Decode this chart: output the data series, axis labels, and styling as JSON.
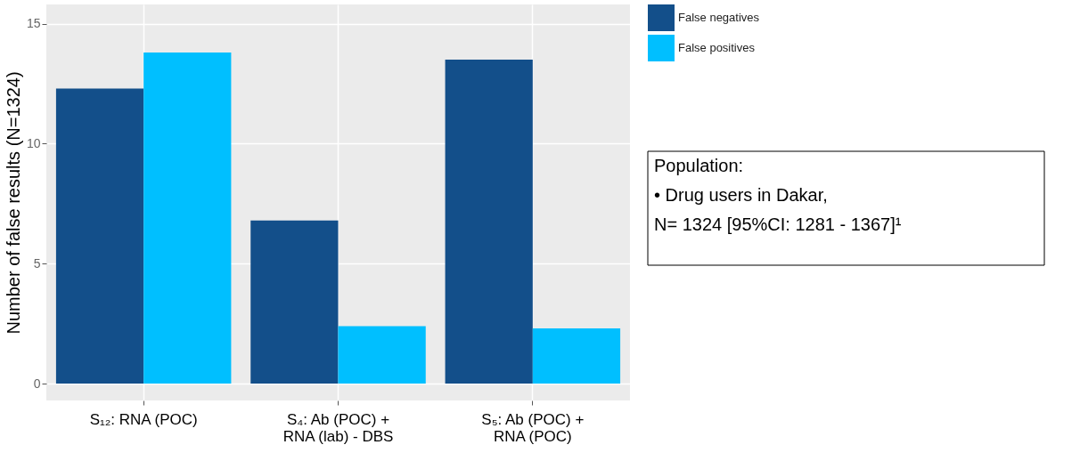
{
  "chart_data": {
    "type": "bar",
    "ylabel": "Number of false results (N=1324)",
    "categories": [
      "S₁₂: RNA (POC)",
      "S₄: Ab (POC) +\nRNA (lab) - DBS",
      "S₅: Ab (POC) +\nRNA (POC)"
    ],
    "series": [
      {
        "name": "False negatives",
        "color": "#134f8a",
        "values": [
          12.3,
          6.8,
          13.5
        ]
      },
      {
        "name": "False positives",
        "color": "#00bfff",
        "values": [
          13.8,
          2.4,
          2.3
        ]
      }
    ],
    "ylim": [
      -0.7,
      15.8
    ],
    "yticks": [
      0,
      5,
      10,
      15
    ],
    "grid": true,
    "legend": "top right",
    "annotations": [
      "Population:\n•   Drug users in Dakar,\n     N= 1324 [95%CI: 1281 - 1367]¹"
    ]
  }
}
